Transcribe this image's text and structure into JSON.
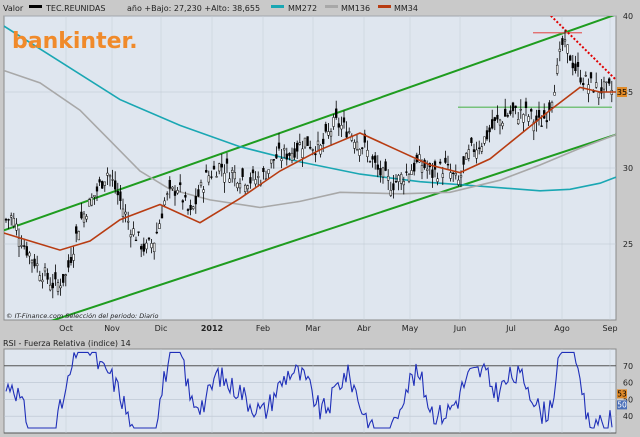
{
  "legend_bar": {
    "label": "Valor",
    "series_name": "TEC.REUNIDAS",
    "stats": "año +Bajo: 27,230 +Alto: 38,655",
    "mm1": "MM272",
    "mm2": "MM136",
    "mm3": "MM34"
  },
  "watermark": "bankinter.",
  "credit": "© IT-Finance.com  Selección del periodo: Diario",
  "colors": {
    "bg": "#c9c9c9",
    "plot_bg": "#dfe6ef",
    "candle": "#000000",
    "mm272": "#1aa7b3",
    "mm136": "#a8a8a8",
    "mm34": "#b83c12",
    "channel": "#1f9c1f",
    "support": "#55b655",
    "resistance": "#e26060",
    "dotted_trend": "#e00000",
    "rsi_line": "#1f2fb8",
    "watermark": "#f08a2a"
  },
  "chart_data": [
    {
      "type": "candlestick",
      "title": "TEC.REUNIDAS",
      "x_ticks": [
        "Oct",
        "Nov",
        "Dic",
        "2012",
        "Feb",
        "Mar",
        "Abr",
        "May",
        "Jun",
        "Jul",
        "Ago",
        "Sep"
      ],
      "y_ticks": [
        25,
        30,
        35,
        40
      ],
      "ylim": [
        20,
        40
      ],
      "low_label": "+Bajo: 27,230",
      "high_label": "+Alto: 38,655",
      "last_value": "35",
      "series": [
        {
          "name": "MM272",
          "color": "#1aa7b3",
          "shape": "falling from top-left to trough near Ago, then rising",
          "points": [
            [
              0,
              39.5
            ],
            [
              60,
              37
            ],
            [
              120,
              34.5
            ],
            [
              180,
              32.8
            ],
            [
              240,
              31.4
            ],
            [
              300,
              30.4
            ],
            [
              360,
              29.6
            ],
            [
              420,
              29.1
            ],
            [
              480,
              28.8
            ],
            [
              540,
              28.5
            ],
            [
              570,
              28.6
            ],
            [
              600,
              29
            ],
            [
              616,
              29.4
            ]
          ]
        },
        {
          "name": "MM136",
          "color": "#a8a8a8",
          "points": [
            [
              0,
              36.5
            ],
            [
              40,
              35.6
            ],
            [
              80,
              33.8
            ],
            [
              110,
              31.8
            ],
            [
              140,
              29.8
            ],
            [
              170,
              28.6
            ],
            [
              210,
              27.9
            ],
            [
              260,
              27.4
            ],
            [
              300,
              27.8
            ],
            [
              340,
              28.4
            ],
            [
              400,
              28.3
            ],
            [
              450,
              28.4
            ],
            [
              500,
              29.2
            ],
            [
              540,
              30.2
            ],
            [
              580,
              31.3
            ],
            [
              616,
              32.2
            ]
          ]
        },
        {
          "name": "MM34",
          "color": "#b83c12",
          "points": [
            [
              0,
              25.8
            ],
            [
              30,
              25.2
            ],
            [
              60,
              24.6
            ],
            [
              90,
              25.2
            ],
            [
              120,
              26.6
            ],
            [
              160,
              27.6
            ],
            [
              200,
              26.4
            ],
            [
              240,
              28
            ],
            [
              280,
              29.8
            ],
            [
              320,
              31.2
            ],
            [
              360,
              32.3
            ],
            [
              400,
              31.1
            ],
            [
              430,
              30.2
            ],
            [
              460,
              29.7
            ],
            [
              490,
              30.6
            ],
            [
              520,
              32.2
            ],
            [
              550,
              33.8
            ],
            [
              580,
              35.3
            ],
            [
              600,
              35
            ],
            [
              616,
              35
            ]
          ]
        }
      ],
      "trendlines": [
        {
          "name": "channel-upper",
          "from": [
            "Sep 2011",
            25.9
          ],
          "to": [
            "Sep 2012",
            40.1
          ]
        },
        {
          "name": "channel-lower",
          "from": [
            "Oct 2011",
            19.7
          ],
          "to": [
            "Sep 2012",
            32.2
          ]
        },
        {
          "name": "support",
          "value": 34,
          "from": "Jun",
          "to": "Sep"
        },
        {
          "name": "resistance",
          "value": 38.9,
          "from": "Jul",
          "to": "Ago"
        },
        {
          "name": "falling-resistance",
          "from": [
            "Jul",
            40
          ],
          "to": [
            "Sep",
            36
          ]
        }
      ]
    },
    {
      "type": "line",
      "title": "RSI - Fuerza Relativa (indice) 14",
      "y_ticks": [
        40,
        50,
        60,
        70
      ],
      "ylim": [
        30,
        80
      ],
      "overbought": 70,
      "oversold": 30,
      "last_value_high": "53",
      "last_value_low": "50"
    }
  ]
}
